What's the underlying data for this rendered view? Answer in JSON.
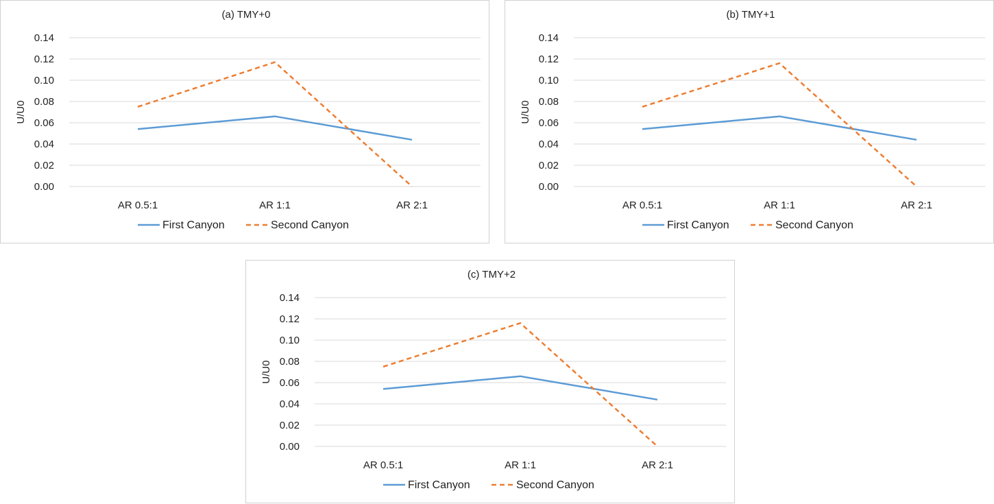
{
  "chart_data": [
    {
      "type": "line",
      "title": "(a) TMY+0",
      "ylabel": "U/U0",
      "xlabel": "",
      "categories": [
        "AR 0.5:1",
        "AR 1:1",
        "AR 2:1"
      ],
      "ylim": [
        0,
        0.14
      ],
      "yticks": [
        "0.00",
        "0.02",
        "0.04",
        "0.06",
        "0.08",
        "0.10",
        "0.12",
        "0.14"
      ],
      "grid": true,
      "legend": "bottom",
      "series": [
        {
          "name": "First Canyon",
          "values": [
            0.054,
            0.066,
            0.044
          ],
          "color": "#5b9bd5",
          "dash": "solid"
        },
        {
          "name": "Second Canyon",
          "values": [
            0.075,
            0.117,
            0.0
          ],
          "color": "#ed7d31",
          "dash": "dashed"
        }
      ]
    },
    {
      "type": "line",
      "title": "(b) TMY+1",
      "ylabel": "U/U0",
      "xlabel": "",
      "categories": [
        "AR 0.5:1",
        "AR 1:1",
        "AR 2:1"
      ],
      "ylim": [
        0,
        0.14
      ],
      "yticks": [
        "0.00",
        "0.02",
        "0.04",
        "0.06",
        "0.08",
        "0.10",
        "0.12",
        "0.14"
      ],
      "grid": true,
      "legend": "bottom",
      "series": [
        {
          "name": "First Canyon",
          "values": [
            0.054,
            0.066,
            0.044
          ],
          "color": "#5b9bd5",
          "dash": "solid"
        },
        {
          "name": "Second Canyon",
          "values": [
            0.075,
            0.116,
            0.0
          ],
          "color": "#ed7d31",
          "dash": "dashed"
        }
      ]
    },
    {
      "type": "line",
      "title": "(c) TMY+2",
      "ylabel": "U/U0",
      "xlabel": "",
      "categories": [
        "AR 0.5:1",
        "AR 1:1",
        "AR 2:1"
      ],
      "ylim": [
        0,
        0.14
      ],
      "yticks": [
        "0.00",
        "0.02",
        "0.04",
        "0.06",
        "0.08",
        "0.10",
        "0.12",
        "0.14"
      ],
      "grid": true,
      "legend": "bottom",
      "series": [
        {
          "name": "First Canyon",
          "values": [
            0.054,
            0.066,
            0.044
          ],
          "color": "#5b9bd5",
          "dash": "solid"
        },
        {
          "name": "Second Canyon",
          "values": [
            0.075,
            0.116,
            0.0
          ],
          "color": "#ed7d31",
          "dash": "dashed"
        }
      ]
    }
  ]
}
